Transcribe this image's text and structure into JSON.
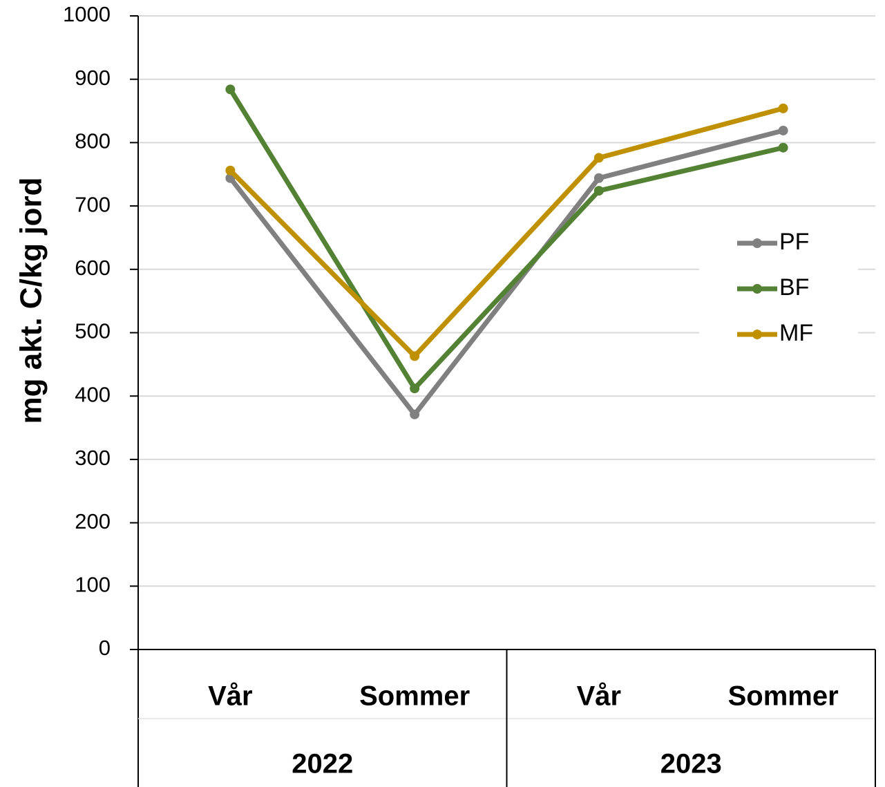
{
  "chart_data": {
    "type": "line",
    "y_label": "mg akt. C/kg jord",
    "categories": [
      "Vår",
      "Sommer",
      "Vår",
      "Sommer"
    ],
    "groups": [
      "2022",
      "2023"
    ],
    "series": [
      {
        "name": "PF",
        "color": "#808080",
        "values": [
          744,
          371,
          744,
          819
        ]
      },
      {
        "name": "BF",
        "color": "#548235",
        "values": [
          884,
          412,
          724,
          792
        ]
      },
      {
        "name": "MF",
        "color": "#bf9000",
        "values": [
          756,
          463,
          776,
          854
        ]
      }
    ],
    "ylim": [
      0,
      1000
    ],
    "yticks": [
      0,
      100,
      200,
      300,
      400,
      500,
      600,
      700,
      800,
      900,
      1000
    ],
    "grid": true,
    "legend": "right"
  }
}
